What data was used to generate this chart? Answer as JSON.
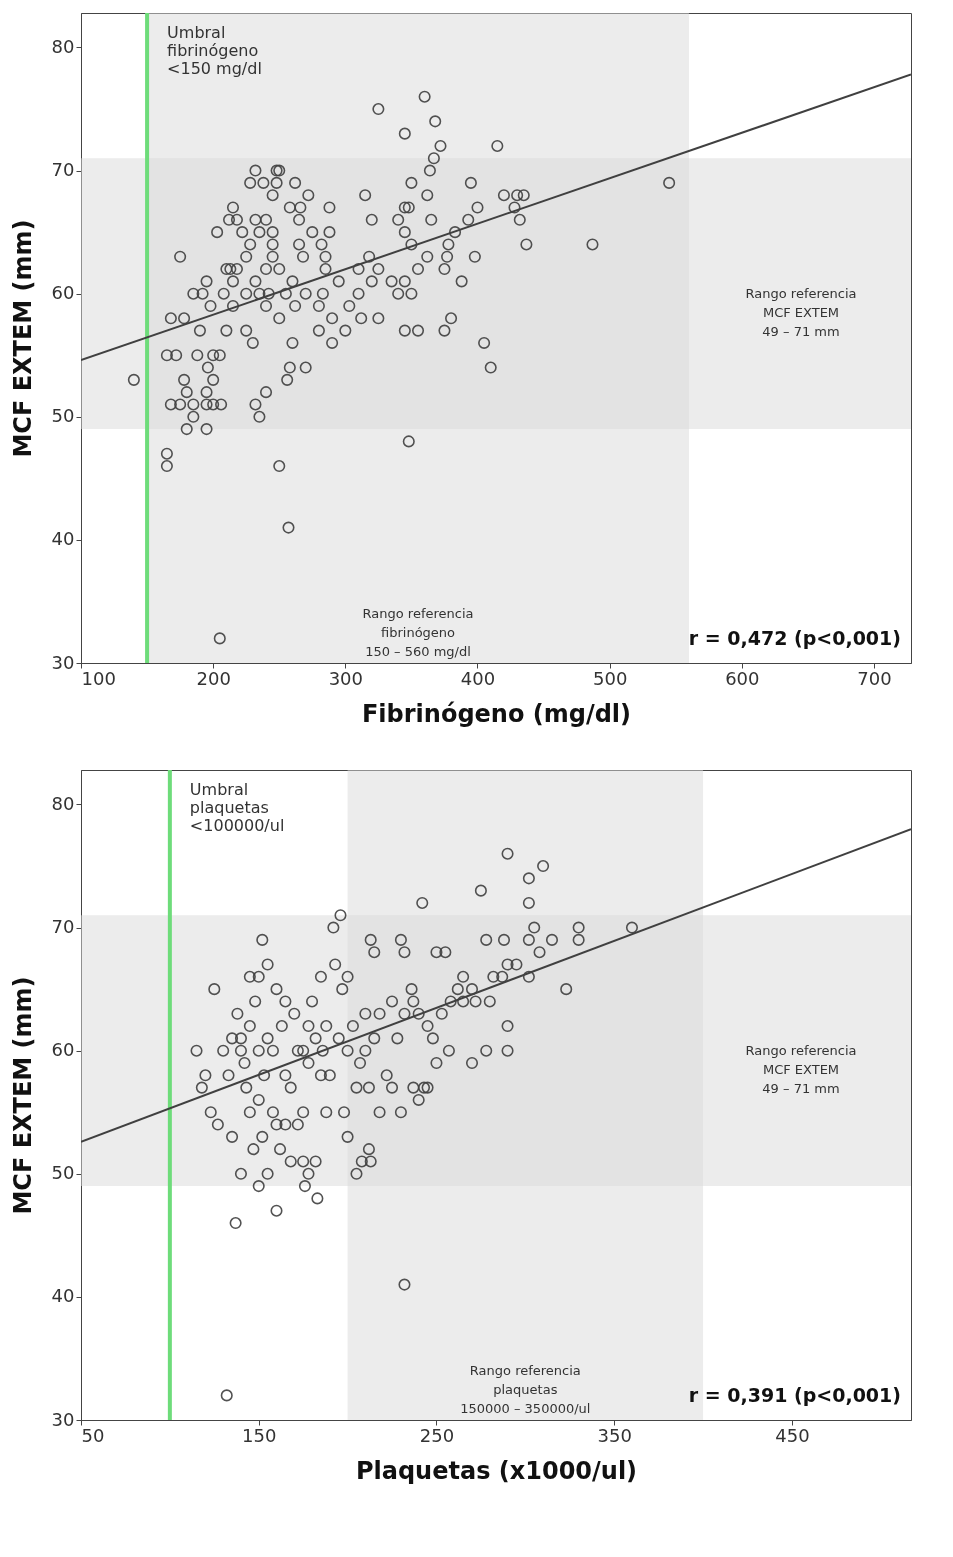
{
  "chart_data": [
    {
      "type": "scatter",
      "xlabel": "Fibrinógeno  (mg/dl)",
      "ylabel": "MCF EXTEM (mm)",
      "xlim": [
        100,
        728
      ],
      "ylim": [
        30,
        82.8
      ],
      "xticks": [
        100,
        200,
        300,
        400,
        500,
        600,
        700
      ],
      "yticks": [
        30,
        40,
        50,
        60,
        70,
        80
      ],
      "series": [
        {
          "marker": "circle",
          "color": "#404040",
          "x": [
            140,
            165,
            165,
            250,
            257,
            205,
            348,
            360,
            325,
            368,
            345,
            372,
            415,
            545,
            487,
            437,
            405,
            410,
            367,
            364,
            362,
            232,
            250,
            248,
            238,
            228,
            248,
            262,
            350,
            395,
            315,
            272,
            245,
            258,
            266,
            288,
            345,
            348,
            400,
            428,
            430,
            435,
            420,
            215,
            212,
            218,
            232,
            240,
            265,
            320,
            340,
            365,
            393,
            432,
            203,
            222,
            235,
            245,
            275,
            288,
            345,
            383,
            228,
            245,
            265,
            282,
            350,
            378,
            175,
            225,
            245,
            268,
            285,
            318,
            362,
            377,
            398,
            210,
            213,
            218,
            240,
            250,
            285,
            310,
            325,
            355,
            375,
            195,
            215,
            232,
            260,
            295,
            320,
            335,
            345,
            388,
            185,
            192,
            208,
            225,
            235,
            242,
            255,
            270,
            283,
            310,
            340,
            350,
            178,
            198,
            215,
            240,
            262,
            280,
            303,
            325,
            355,
            375,
            380,
            168,
            190,
            210,
            225,
            250,
            290,
            312,
            345,
            165,
            172,
            188,
            200,
            205,
            230,
            260,
            280,
            300,
            290,
            178,
            196,
            200,
            240,
            256,
            270,
            258,
            168,
            175,
            185,
            195,
            200,
            206,
            232,
            185,
            235,
            180,
            195,
            180,
            195
          ],
          "values": [
            53,
            47,
            46,
            46,
            41,
            32,
            48,
            76,
            75,
            74,
            73,
            72,
            72,
            69,
            64,
            64,
            56,
            54,
            71,
            70,
            68,
            70,
            70,
            70,
            69,
            69,
            69,
            69,
            69,
            69,
            68,
            68,
            68,
            67,
            67,
            67,
            67,
            67,
            67,
            67,
            68,
            68,
            68,
            67,
            66,
            66,
            66,
            66,
            66,
            66,
            66,
            66,
            66,
            66,
            65,
            65,
            65,
            65,
            65,
            65,
            65,
            65,
            64,
            64,
            64,
            64,
            64,
            64,
            63,
            63,
            63,
            63,
            63,
            63,
            63,
            63,
            63,
            62,
            62,
            62,
            62,
            62,
            62,
            62,
            62,
            62,
            62,
            61,
            61,
            61,
            61,
            61,
            61,
            61,
            61,
            61,
            60,
            60,
            60,
            60,
            60,
            60,
            60,
            60,
            60,
            60,
            60,
            60,
            58,
            59,
            59,
            59,
            59,
            59,
            59,
            58,
            57,
            57,
            58,
            58,
            57,
            57,
            57,
            58,
            58,
            58,
            57,
            55,
            55,
            55,
            55,
            55,
            56,
            56,
            57,
            57,
            56,
            53,
            54,
            53,
            52,
            53,
            54,
            54,
            51,
            51,
            51,
            51,
            51,
            51,
            51,
            50,
            50,
            49,
            49,
            52,
            52
          ]
        },
        {
          "type": "line",
          "color": "#404040",
          "x": [
            100,
            728
          ],
          "values": [
            54.6,
            77.8
          ]
        }
      ],
      "ref_lines": [
        {
          "axis": "x",
          "value": 150,
          "label": "Umbral\nfibrinógeno\n<150 mg/dl",
          "color": "#6edc7a"
        }
      ],
      "bands": [
        {
          "axis": "x",
          "from": 150,
          "to": 560,
          "label": "Rango referencia\nfibrinógeno\n150 – 560 mg/dl",
          "color": "#d9d9d9"
        },
        {
          "axis": "y",
          "from": 49,
          "to": 71,
          "label": "Rango referencia\nMCF EXTEM\n49 – 71 mm",
          "color": "#d9d9d9"
        }
      ],
      "annotations": [
        "r = 0,472 (p<0,001)"
      ]
    },
    {
      "type": "scatter",
      "xlabel": "Plaquetas (x1000/ul)",
      "ylabel": "MCF EXTEM (mm)",
      "xlim": [
        50,
        517
      ],
      "ylim": [
        30,
        82.8
      ],
      "xticks": [
        50,
        150,
        250,
        350,
        450
      ],
      "yticks": [
        30,
        40,
        50,
        60,
        70,
        80
      ],
      "series": [
        {
          "marker": "circle",
          "color": "#404040",
          "x": [
            132,
            232,
            183,
            137,
            160,
            150,
            176,
            290,
            310,
            302,
            302,
            242,
            275,
            360,
            196,
            192,
            305,
            330,
            302,
            315,
            330,
            278,
            288,
            230,
            213,
            152,
            250,
            255,
            232,
            215,
            308,
            295,
            290,
            287,
            302,
            282,
            270,
            323,
            280,
            272,
            265,
            290,
            278,
            290,
            270,
            257,
            250,
            245,
            240,
            243,
            125,
            115,
            120,
            118,
            123,
            127,
            135,
            140,
            147,
            145,
            150,
            152,
            142,
            140,
            138,
            145,
            150,
            155,
            158,
            148,
            150,
            155,
            160,
            163,
            165,
            170,
            172,
            165,
            168,
            175,
            178,
            180,
            182,
            185,
            188,
            175,
            172,
            165,
            162,
            168,
            175,
            178,
            182,
            195,
            197,
            193,
            200,
            203,
            207,
            210,
            205,
            212,
            218,
            215,
            222,
            218,
            225,
            228,
            232,
            236,
            225,
            230,
            237,
            212,
            205,
            208,
            213,
            198,
            200,
            188,
            186,
            160,
            155,
            130,
            133,
            135,
            143,
            153,
            158,
            145,
            140,
            190,
            185,
            178,
            200,
            210,
            245,
            248,
            253,
            258,
            262,
            265,
            240,
            237
          ],
          "values": [
            32,
            41,
            48,
            46,
            47,
            49,
            49,
            76,
            75,
            74,
            72,
            72,
            73,
            70,
            71,
            70,
            70,
            70,
            69,
            69,
            69,
            69,
            69,
            69,
            69,
            69,
            68,
            68,
            68,
            68,
            68,
            67,
            67,
            66,
            66,
            66,
            65,
            65,
            64,
            64,
            64,
            62,
            60,
            60,
            59,
            60,
            59,
            57,
            56,
            57,
            65,
            60,
            58,
            57,
            55,
            54,
            53,
            50,
            52,
            55,
            56,
            53,
            59,
            61,
            63,
            62,
            60,
            61,
            60,
            64,
            66,
            67,
            65,
            62,
            64,
            63,
            60,
            58,
            57,
            60,
            62,
            64,
            61,
            58,
            55,
            55,
            54,
            54,
            52,
            51,
            51,
            50,
            51,
            61,
            65,
            67,
            66,
            62,
            59,
            60,
            57,
            57,
            55,
            61,
            58,
            63,
            64,
            61,
            63,
            65,
            57,
            55,
            57,
            52,
            50,
            51,
            51,
            55,
            53,
            62,
            60,
            54,
            50,
            60,
            58,
            61,
            57,
            58,
            55,
            66,
            60,
            58,
            66,
            59,
            60,
            63,
            62,
            61,
            63,
            64,
            65,
            66,
            63,
            64
          ]
        },
        {
          "type": "line",
          "color": "#404040",
          "x": [
            50,
            517
          ],
          "values": [
            52.6,
            78.0
          ]
        }
      ],
      "ref_lines": [
        {
          "axis": "x",
          "value": 100,
          "label": "Umbral\nplaquetas\n<100000/ul",
          "color": "#6edc7a"
        }
      ],
      "bands": [
        {
          "axis": "x",
          "from": 200,
          "to": 400,
          "label": "Rango referencia\nplaquetas\n150000 – 350000/ul",
          "color": "#d9d9d9"
        },
        {
          "axis": "y",
          "from": 49,
          "to": 71,
          "label": "Rango referencia\nMCF EXTEM\n49 – 71 mm",
          "color": "#d9d9d9"
        }
      ],
      "annotations": [
        "r = 0,391 (p<0,001)"
      ]
    }
  ]
}
